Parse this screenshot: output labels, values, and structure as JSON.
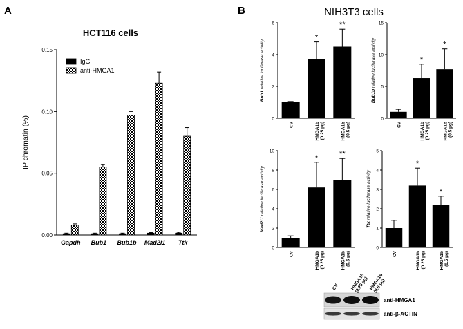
{
  "panel_labels": [
    "A",
    "B"
  ],
  "figure_b_title": "NIH3T3 cells",
  "chart_data": [
    {
      "id": "A",
      "type": "bar",
      "title": "HCT116 cells",
      "ylabel": "IP chromatin (%)",
      "ylim": [
        0,
        0.15
      ],
      "yticks": [
        "0.00",
        "0.05",
        "0.10",
        "0.15"
      ],
      "categories": [
        "Gapdh",
        "Bub1",
        "Bub1b",
        "Mad2l1",
        "Ttk"
      ],
      "series": [
        {
          "name": "IgG",
          "values": [
            0.001,
            0.001,
            0.001,
            0.0015,
            0.0015
          ],
          "errors": [
            0.0005,
            0.0005,
            0.0005,
            0.0005,
            0.0007
          ],
          "pattern": "solid"
        },
        {
          "name": "anti-HMGA1",
          "values": [
            0.008,
            0.055,
            0.097,
            0.123,
            0.08
          ],
          "errors": [
            0.001,
            0.002,
            0.003,
            0.009,
            0.007
          ],
          "pattern": "checker"
        }
      ],
      "legend_position": "top"
    },
    {
      "id": "B1",
      "type": "bar",
      "ylabel_gene": "Bub1",
      "ylabel_rest": " relative luciferase activity",
      "ylim": [
        0,
        6
      ],
      "yticks": [
        "0",
        "2",
        "4",
        "6"
      ],
      "categories": [
        [
          "CV"
        ],
        [
          "HMGA1b",
          "(0.25 µg)"
        ],
        [
          "HMGA1b",
          "(0.5 µg)"
        ]
      ],
      "values": [
        1.0,
        3.7,
        4.5
      ],
      "errors": [
        0.05,
        1.1,
        1.1
      ],
      "significance": [
        "",
        "*",
        "**"
      ]
    },
    {
      "id": "B2",
      "type": "bar",
      "ylabel_gene": "Bub1b",
      "ylabel_rest": " relative luciferase activity",
      "ylim": [
        0,
        15
      ],
      "yticks": [
        "0",
        "5",
        "10",
        "15"
      ],
      "categories": [
        [
          "CV"
        ],
        [
          "HMGA1b",
          "(0.25 µg)"
        ],
        [
          "HMGA1b",
          "(0.5 µg)"
        ]
      ],
      "values": [
        1.0,
        6.3,
        7.7
      ],
      "errors": [
        0.4,
        2.2,
        3.2
      ],
      "significance": [
        "",
        "*",
        "*"
      ]
    },
    {
      "id": "B3",
      "type": "bar",
      "ylabel_gene": "Mad2l1",
      "ylabel_rest": " relative luciferase activity",
      "ylim": [
        0,
        10
      ],
      "yticks": [
        "0",
        "2",
        "4",
        "6",
        "8",
        "10"
      ],
      "categories": [
        [
          "CV"
        ],
        [
          "HMGA1b",
          "(0.25 µg)"
        ],
        [
          "HMGA1b",
          "(0.5 µg)"
        ]
      ],
      "values": [
        1.0,
        6.2,
        7.0
      ],
      "errors": [
        0.2,
        2.6,
        2.2
      ],
      "significance": [
        "",
        "*",
        "**"
      ]
    },
    {
      "id": "B4",
      "type": "bar",
      "ylabel_gene": "Ttk",
      "ylabel_rest": " relative luciferase activity",
      "ylim": [
        0,
        5
      ],
      "yticks": [
        "0",
        "1",
        "2",
        "3",
        "4",
        "5"
      ],
      "categories": [
        [
          "CV"
        ],
        [
          "HMGA1b",
          "(0.25 µg)"
        ],
        [
          "HMGA1b",
          "(0.5 µg)"
        ]
      ],
      "values": [
        1.0,
        3.2,
        2.2
      ],
      "errors": [
        0.4,
        0.9,
        0.45
      ],
      "significance": [
        "",
        "*",
        "*"
      ]
    }
  ],
  "western_blot": {
    "lanes": [
      "CV",
      "HMGA1b (0.25 µg)",
      "HMGA1b (0.5 µg)"
    ],
    "lane_lines": [
      [
        "CV"
      ],
      [
        "HMGA1b",
        "(0.25 µg)"
      ],
      [
        "HMGA1b",
        "(0.5 µg)"
      ]
    ],
    "rows": [
      {
        "label": "anti-HMGA1"
      },
      {
        "label": "anti-β-ACTIN"
      }
    ]
  }
}
